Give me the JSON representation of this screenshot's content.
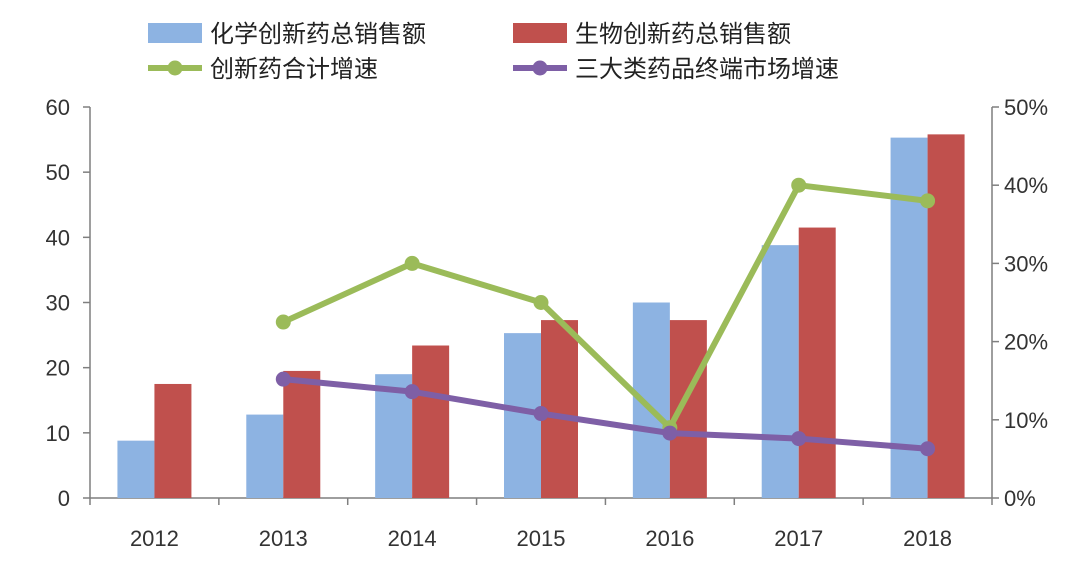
{
  "chart_data": {
    "type": "bar",
    "categories": [
      "2012",
      "2013",
      "2014",
      "2015",
      "2016",
      "2017",
      "2018"
    ],
    "y_left": {
      "ticks": [
        "0",
        "10",
        "20",
        "30",
        "40",
        "50",
        "60"
      ],
      "range": [
        0,
        60
      ]
    },
    "y_right": {
      "ticks": [
        "0%",
        "10%",
        "20%",
        "30%",
        "40%",
        "50%"
      ],
      "range": [
        0,
        50
      ],
      "unit": "%"
    },
    "series": [
      {
        "name": "化学创新药总销售额",
        "kind": "bar",
        "axis": "left",
        "color": "#8db3e2",
        "values": [
          8.8,
          12.8,
          19.0,
          25.3,
          30.0,
          38.8,
          55.3
        ]
      },
      {
        "name": "生物创新药总销售额",
        "kind": "bar",
        "axis": "left",
        "color": "#c0504d",
        "values": [
          17.5,
          19.5,
          23.4,
          27.3,
          27.3,
          41.5,
          55.8
        ]
      },
      {
        "name": "创新药合计增速",
        "kind": "line",
        "axis": "right",
        "color": "#9bbb59",
        "values": [
          null,
          22.5,
          30.0,
          25.0,
          9.0,
          40.0,
          38.0
        ]
      },
      {
        "name": "三大类药品终端市场增速",
        "kind": "line",
        "axis": "right",
        "color": "#7e5fa6",
        "values": [
          null,
          15.2,
          13.6,
          10.8,
          8.3,
          7.6,
          6.3
        ]
      }
    ],
    "legend": "top",
    "grid": false
  }
}
